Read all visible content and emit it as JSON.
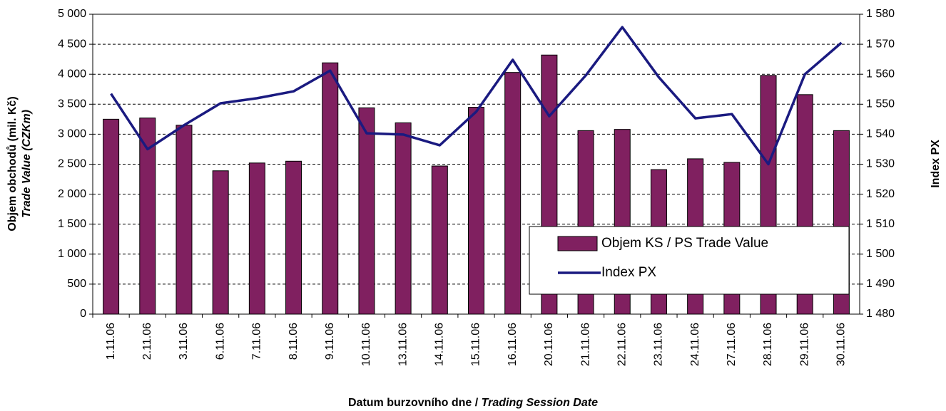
{
  "chart_data": {
    "type": "bar",
    "y_label": [
      "Objem obchodů (mil. Kč)",
      "Trade Value (CZKm)"
    ],
    "y2_label": "Index PX",
    "x_label": [
      "Datum burzovního dne / ",
      "Trading Session Date"
    ],
    "categories": [
      "1.11.06",
      "2.11.06",
      "3.11.06",
      "6.11.06",
      "7.11.06",
      "8.11.06",
      "9.11.06",
      "10.11.06",
      "13.11.06",
      "14.11.06",
      "15.11.06",
      "16.11.06",
      "20.11.06",
      "21.11.06",
      "22.11.06",
      "23.11.06",
      "24.11.06",
      "27.11.06",
      "28.11.06",
      "29.11.06",
      "30.11.06"
    ],
    "series": [
      {
        "name": "Objem KS / PS Trade Value",
        "type": "bar",
        "color": "#802060",
        "values": [
          3250,
          3270,
          3150,
          2390,
          2520,
          2550,
          4190,
          3440,
          3190,
          2470,
          3450,
          4030,
          4320,
          3060,
          3080,
          2410,
          2590,
          2530,
          3980,
          3660,
          3060
        ]
      },
      {
        "name": "Index PX",
        "type": "line",
        "axis": "y2",
        "color": "#1a1a80",
        "values": [
          1553.5,
          1535,
          1543,
          1550.3,
          1552,
          1554.3,
          1561.2,
          1540.3,
          1539.9,
          1536.3,
          1547.5,
          1564.8,
          1546,
          1559.6,
          1575.7,
          1559,
          1545.3,
          1546.7,
          1530,
          1560,
          1570.5
        ]
      }
    ],
    "ylim": [
      0,
      5000
    ],
    "yticks": [
      0,
      500,
      {
        "value": 1000,
        "label": "1 000"
      },
      {
        "value": 1500,
        "label": "1 500"
      },
      {
        "value": 2000,
        "label": "2 000"
      },
      {
        "value": 2500,
        "label": "2 500"
      },
      {
        "value": 3000,
        "label": "3 000"
      },
      {
        "value": 3500,
        "label": "3 500"
      },
      {
        "value": 4000,
        "label": "4 000"
      },
      {
        "value": 4500,
        "label": "4 500"
      },
      {
        "value": 5000,
        "label": "5 000"
      }
    ],
    "y2lim": [
      1480,
      1580
    ],
    "y2ticks": [
      {
        "value": 1480,
        "label": "1 480"
      },
      {
        "value": 1490,
        "label": "1 490"
      },
      {
        "value": 1500,
        "label": "1 500"
      },
      {
        "value": 1510,
        "label": "1 510"
      },
      {
        "value": 1520,
        "label": "1 520"
      },
      {
        "value": 1530,
        "label": "1 530"
      },
      {
        "value": 1540,
        "label": "1 540"
      },
      {
        "value": 1550,
        "label": "1 550"
      },
      {
        "value": 1560,
        "label": "1 560"
      },
      {
        "value": 1570,
        "label": "1 570"
      },
      {
        "value": 1580,
        "label": "1 580"
      }
    ],
    "grid": true,
    "legend": "lower right"
  }
}
